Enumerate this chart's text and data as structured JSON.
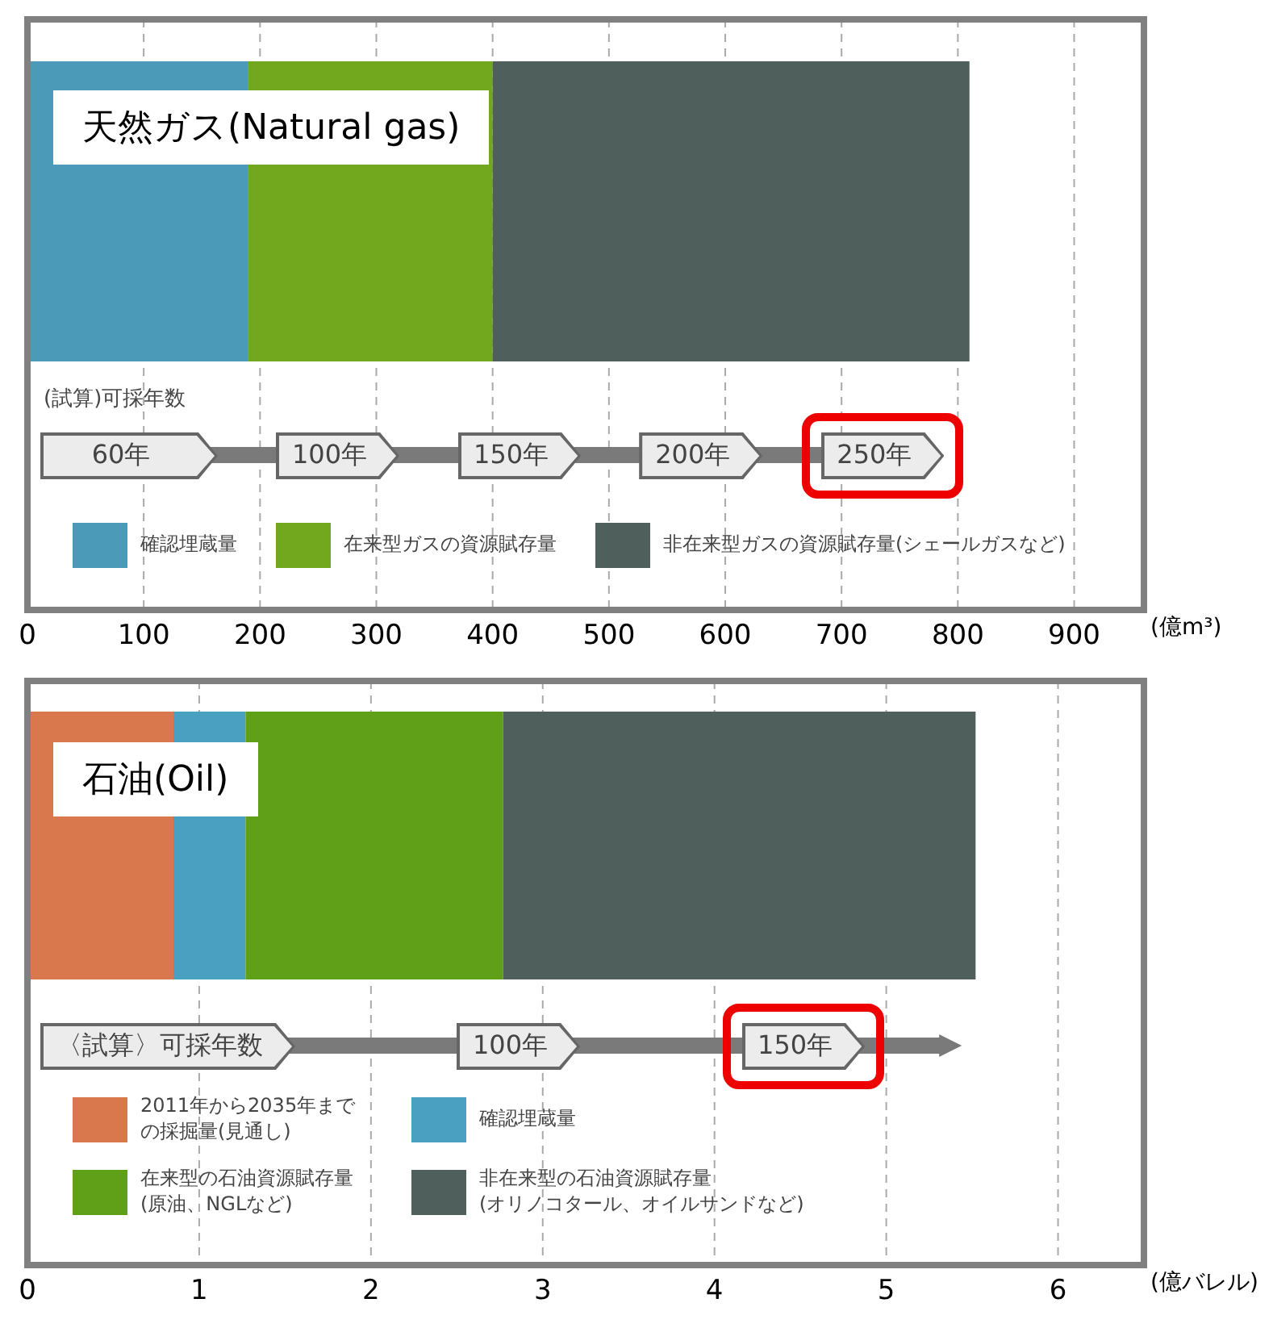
{
  "chart_data": [
    {
      "type": "bar",
      "orientation": "horizontal",
      "stacked": true,
      "title": "天然ガス(Natural gas)",
      "xlabel": "(億m³)",
      "categories": [
        null
      ],
      "series": [
        {
          "name": "確認埋蔵量",
          "color": "#4a9ab8",
          "values": [
            190
          ]
        },
        {
          "name": "在来型ガスの資源賦存量",
          "color": "#72a81e",
          "values": [
            210
          ]
        },
        {
          "name": "非在来型ガスの資源賦存量(シェールガスなど)",
          "color": "#4f605c",
          "values": [
            410
          ]
        }
      ],
      "xlim": [
        0,
        960
      ],
      "xticks": [
        0,
        100,
        200,
        300,
        400,
        500,
        600,
        700,
        800,
        900
      ],
      "grid": "x",
      "legend": "bottom",
      "annotations": [
        "(試算)可採年数",
        "60年",
        "100年",
        "150年",
        "200年",
        "250年"
      ]
    },
    {
      "type": "bar",
      "orientation": "horizontal",
      "stacked": true,
      "title": "石油(Oil)",
      "xlabel": "(億バレル)",
      "categories": [
        null
      ],
      "series": [
        {
          "name": "2011年から2035年までの採掘量(見通し)",
          "color": "#d8784c",
          "values": [
            0.85
          ]
        },
        {
          "name": "確認埋蔵量",
          "color": "#4aa0c0",
          "values": [
            0.42
          ]
        },
        {
          "name": "在来型の石油資源賦存量\n(原油、NGLなど)",
          "color": "#5fa018",
          "values": [
            1.5
          ]
        },
        {
          "name": "非在来型の石油資源賦存量\n(オリノコタール、オイルサンドなど)",
          "color": "#4f605c",
          "values": [
            2.75
          ]
        }
      ],
      "xlim": [
        0,
        6.5
      ],
      "xticks": [
        0,
        1,
        2,
        3,
        4,
        5,
        6
      ],
      "grid": "x",
      "legend": "bottom",
      "annotations": [
        "〈試算〉可採年数",
        "100年",
        "150年"
      ]
    }
  ]
}
